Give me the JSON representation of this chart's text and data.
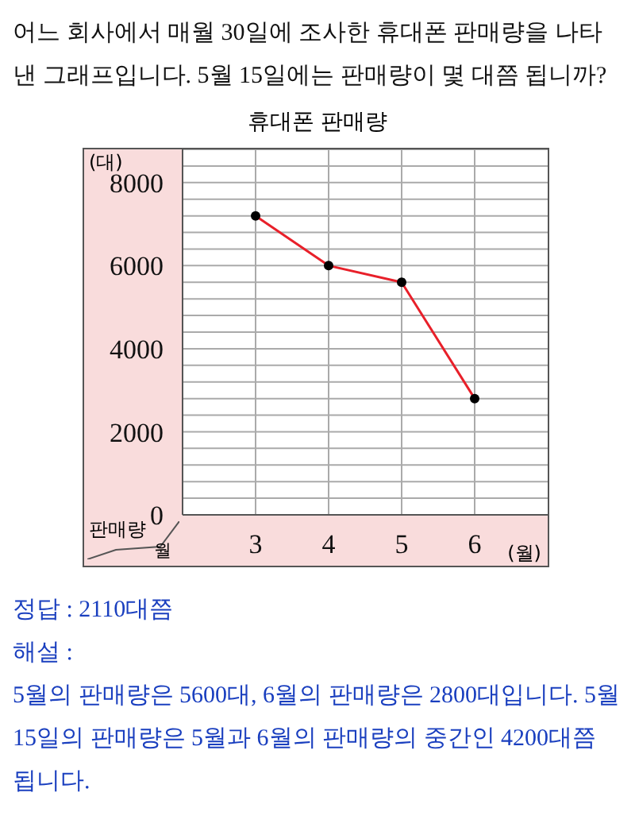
{
  "chart_data": {
    "type": "line",
    "title": "휴대폰 판매량",
    "ylabel": "(대)",
    "xlabel": "(월)",
    "annotations": [
      "어느 회사에서 매월 30일에 조사한 휴대폰 판매량을 나타낸 그래프입니다. 5월 15일에는 판매량이 몇 대쯤 됩니까?",
      "판매량",
      "월",
      "정답 : 2110대쯤",
      "해설 :",
      "5월의 판매량은 5600대, 6월의 판매량은 2800대입니다. 5월 15일의 판매량은 5월과 6월의 판매량의 중간인 4200대쯤 됩니다."
    ],
    "x": [
      3,
      4,
      5,
      6
    ],
    "xlim": [
      2,
      7
    ],
    "xticks": [
      3,
      4,
      5,
      6
    ],
    "series": [
      {
        "color": "#e8202a",
        "values": [
          7200,
          6000,
          5600,
          2800
        ]
      }
    ],
    "ylim": [
      0,
      8800
    ],
    "yticks": [
      0,
      {
        "value": 400,
        "label": null
      },
      {
        "value": 800,
        "label": null
      },
      {
        "value": 1200,
        "label": null
      },
      {
        "value": 1600,
        "label": null
      },
      2000,
      {
        "value": 2400,
        "label": null
      },
      {
        "value": 2800,
        "label": null
      },
      {
        "value": 3200,
        "label": null
      },
      {
        "value": 3600,
        "label": null
      },
      4000,
      {
        "value": 4400,
        "label": null
      },
      {
        "value": 4800,
        "label": null
      },
      {
        "value": 5200,
        "label": null
      },
      {
        "value": 5600,
        "label": null
      },
      6000,
      {
        "value": 6400,
        "label": null
      },
      {
        "value": 6800,
        "label": null
      },
      {
        "value": 7200,
        "label": null
      },
      {
        "value": 7600,
        "label": null
      },
      8000,
      {
        "value": 8400,
        "label": null
      },
      {
        "value": 8800,
        "label": null
      }
    ],
    "grid": true,
    "marker": "circle",
    "line_style": "solid",
    "legend": false
  }
}
